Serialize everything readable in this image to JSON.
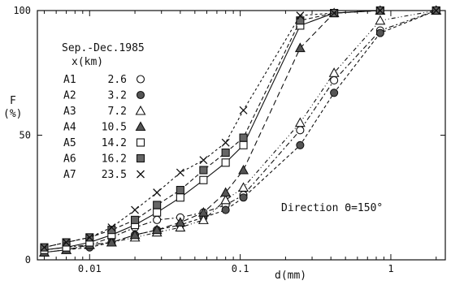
{
  "chart_data": {
    "type": "line",
    "title": "Sep.-Dec.1985",
    "legend_header": "x(km)",
    "xlabel": "d(mm)",
    "ylabel": "F",
    "ylabel_unit": "(%)",
    "annotation": "Direction Θ=150°",
    "xscale": "log",
    "xlim": [
      0.0045,
      2.3
    ],
    "ylim": [
      0,
      100
    ],
    "xticks": [
      0.01,
      0.1,
      1
    ],
    "xtick_labels": [
      "0.01",
      "0.1",
      "1"
    ],
    "yticks": [
      0,
      50,
      100
    ],
    "ytick_labels": [
      "0",
      "50",
      "100"
    ],
    "grid": false,
    "legend_position": "upper-left",
    "series": [
      {
        "name": "A1",
        "distance": "2.6",
        "marker": "circle-open",
        "x": [
          0.005,
          0.007,
          0.01,
          0.014,
          0.02,
          0.028,
          0.04,
          0.057,
          0.08,
          0.105,
          0.25,
          0.42,
          0.85,
          2.0
        ],
        "y": [
          4,
          5,
          6,
          9,
          13,
          16,
          17,
          19,
          22,
          26,
          52,
          72,
          92,
          100
        ]
      },
      {
        "name": "A2",
        "distance": "3.2",
        "marker": "circle-filled",
        "x": [
          0.005,
          0.007,
          0.01,
          0.014,
          0.02,
          0.028,
          0.04,
          0.057,
          0.08,
          0.105,
          0.25,
          0.42,
          0.85,
          2.0
        ],
        "y": [
          3,
          4,
          5,
          7,
          10,
          12,
          14,
          17,
          20,
          25,
          46,
          67,
          91,
          100
        ]
      },
      {
        "name": "A3",
        "distance": "7.2",
        "marker": "triangle-open",
        "x": [
          0.005,
          0.007,
          0.01,
          0.014,
          0.02,
          0.028,
          0.04,
          0.057,
          0.08,
          0.105,
          0.25,
          0.42,
          0.85,
          2.0
        ],
        "y": [
          3,
          4,
          6,
          7,
          9,
          11,
          13,
          16,
          24,
          29,
          55,
          75,
          96,
          100
        ]
      },
      {
        "name": "A4",
        "distance": "10.5",
        "marker": "triangle-filled",
        "x": [
          0.005,
          0.007,
          0.01,
          0.014,
          0.02,
          0.028,
          0.04,
          0.057,
          0.08,
          0.105,
          0.25,
          0.42,
          0.85,
          2.0
        ],
        "y": [
          3,
          4,
          6,
          7,
          10,
          12,
          15,
          19,
          27,
          36,
          85,
          99,
          100,
          100
        ]
      },
      {
        "name": "A5",
        "distance": "14.2",
        "marker": "square-open",
        "x": [
          0.005,
          0.007,
          0.01,
          0.014,
          0.02,
          0.028,
          0.04,
          0.057,
          0.08,
          0.105,
          0.25,
          0.42,
          0.85,
          2.0
        ],
        "y": [
          4,
          5,
          7,
          10,
          14,
          19,
          25,
          32,
          39,
          46,
          94,
          99,
          100,
          100
        ]
      },
      {
        "name": "A6",
        "distance": "16.2",
        "marker": "square-filled",
        "x": [
          0.005,
          0.007,
          0.01,
          0.014,
          0.02,
          0.028,
          0.04,
          0.057,
          0.08,
          0.105,
          0.25,
          0.42,
          0.85,
          2.0
        ],
        "y": [
          5,
          7,
          9,
          12,
          16,
          22,
          28,
          36,
          43,
          49,
          96,
          99,
          100,
          100
        ]
      },
      {
        "name": "A7",
        "distance": "23.5",
        "marker": "x",
        "x": [
          0.005,
          0.007,
          0.01,
          0.014,
          0.02,
          0.028,
          0.04,
          0.057,
          0.08,
          0.105,
          0.25,
          0.42,
          0.85,
          2.0
        ],
        "y": [
          5,
          7,
          9,
          13,
          20,
          27,
          35,
          40,
          47,
          60,
          98,
          99,
          100,
          100
        ]
      }
    ]
  }
}
